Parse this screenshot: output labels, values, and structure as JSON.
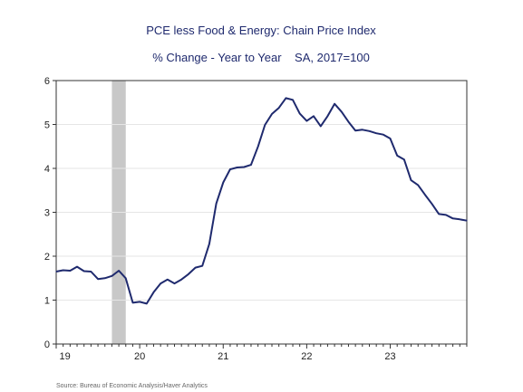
{
  "colors": {
    "line": "#1f2a6e",
    "title": "#1f2a6e",
    "recession": "#c8c8c8",
    "grid": "#e6e6e6",
    "axis": "#333333"
  },
  "chart_data": {
    "type": "line",
    "title": "PCE less Food & Energy: Chain Price Index",
    "subtitle": "% Change - Year to Year    SA, 2017=100",
    "source": "Source:  Bureau of Economic Analysis/Haver Analytics",
    "xlabel": "",
    "ylabel": "",
    "ylim": [
      0,
      6
    ],
    "yticks": [
      0,
      1,
      2,
      3,
      4,
      5,
      6
    ],
    "xlim": [
      2019.0,
      2023.917
    ],
    "xticks": [
      {
        "label": "19",
        "value": 2019.04
      },
      {
        "label": "20",
        "value": 2020.0
      },
      {
        "label": "21",
        "value": 2021.0
      },
      {
        "label": "22",
        "value": 2022.0
      },
      {
        "label": "23",
        "value": 2023.0
      }
    ],
    "grid": "horizontal",
    "recession": {
      "start": 2019.667,
      "end": 2019.833
    },
    "series": [
      {
        "x": [
          2019.0,
          2019.083,
          2019.167,
          2019.25,
          2019.333,
          2019.417,
          2019.5,
          2019.583,
          2019.667,
          2019.75,
          2019.833,
          2019.917,
          2020.0,
          2020.083,
          2020.167,
          2020.25,
          2020.333,
          2020.417,
          2020.5,
          2020.583,
          2020.667,
          2020.75,
          2020.833,
          2020.917,
          2021.0,
          2021.083,
          2021.167,
          2021.25,
          2021.333,
          2021.417,
          2021.5,
          2021.583,
          2021.667,
          2021.75,
          2021.833,
          2021.917,
          2022.0,
          2022.083,
          2022.167,
          2022.25,
          2022.333,
          2022.417,
          2022.5,
          2022.583,
          2022.667,
          2022.75,
          2022.833,
          2022.917,
          2023.0,
          2023.083,
          2023.167,
          2023.25,
          2023.333,
          2023.417,
          2023.5,
          2023.583,
          2023.667,
          2023.75,
          2023.833,
          2023.917
        ],
        "values": [
          1.65,
          1.68,
          1.67,
          1.76,
          1.66,
          1.65,
          1.48,
          1.5,
          1.55,
          1.67,
          1.5,
          0.94,
          0.96,
          0.92,
          1.18,
          1.38,
          1.47,
          1.38,
          1.47,
          1.59,
          1.74,
          1.78,
          2.28,
          3.2,
          3.68,
          3.98,
          4.02,
          4.03,
          4.08,
          4.5,
          4.99,
          5.24,
          5.38,
          5.6,
          5.56,
          5.25,
          5.08,
          5.19,
          4.96,
          5.19,
          5.47,
          5.29,
          5.06,
          4.86,
          4.88,
          4.85,
          4.8,
          4.77,
          4.68,
          4.29,
          4.2,
          3.73,
          3.62,
          3.4,
          3.19,
          2.96,
          2.94,
          2.86,
          2.84,
          2.81
        ]
      }
    ]
  },
  "y_label_values": [
    "0",
    "1",
    "2",
    "3",
    "4",
    "5",
    "6"
  ]
}
